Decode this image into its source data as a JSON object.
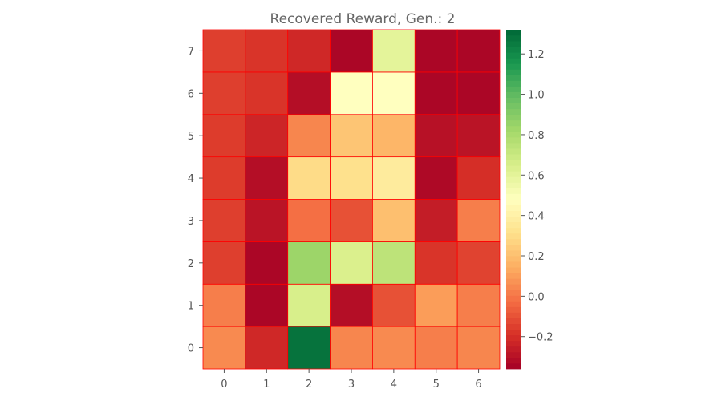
{
  "chart_data": {
    "type": "heatmap",
    "title": "Recovered Reward, Gen.: 2",
    "xlabel": "",
    "ylabel": "",
    "x_categories": [
      "0",
      "1",
      "2",
      "3",
      "4",
      "5",
      "6"
    ],
    "y_categories": [
      "0",
      "1",
      "2",
      "3",
      "4",
      "5",
      "6",
      "7"
    ],
    "y_order": "bottom-to-top",
    "values": [
      [
        0.05,
        -0.22,
        1.28,
        0.04,
        0.05,
        0.02,
        0.04
      ],
      [
        0.02,
        -0.34,
        0.65,
        -0.31,
        -0.1,
        0.1,
        0.02
      ],
      [
        -0.15,
        -0.34,
        0.84,
        0.64,
        0.74,
        -0.18,
        -0.14
      ],
      [
        -0.15,
        -0.29,
        -0.02,
        -0.1,
        0.2,
        -0.26,
        0.02
      ],
      [
        -0.16,
        -0.31,
        0.3,
        0.32,
        0.37,
        -0.33,
        -0.2
      ],
      [
        -0.16,
        -0.23,
        0.04,
        0.22,
        0.17,
        -0.3,
        -0.29
      ],
      [
        -0.15,
        -0.18,
        -0.31,
        0.48,
        0.48,
        -0.34,
        -0.34
      ],
      [
        -0.15,
        -0.18,
        -0.22,
        -0.34,
        0.6,
        -0.34,
        -0.34
      ]
    ],
    "colorscale": "RdYlGn",
    "color_range": [
      -0.36,
      1.32
    ],
    "colorbar_ticks": [
      {
        "value": 1.2,
        "label": "1.2"
      },
      {
        "value": 1.0,
        "label": "1.0"
      },
      {
        "value": 0.8,
        "label": "0.8"
      },
      {
        "value": 0.6,
        "label": "0.6"
      },
      {
        "value": 0.4,
        "label": "0.4"
      },
      {
        "value": 0.2,
        "label": "0.2"
      },
      {
        "value": 0.0,
        "label": "0.0"
      },
      {
        "value": -0.2,
        "label": "−0.2"
      }
    ],
    "cell_border_color": "#ff0000",
    "grid": false
  }
}
